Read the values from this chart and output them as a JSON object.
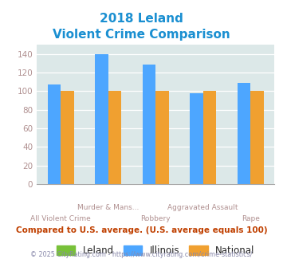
{
  "title_line1": "2018 Leland",
  "title_line2": "Violent Crime Comparison",
  "top_labels": [
    "",
    "Murder & Mans...",
    "",
    "Aggravated Assault",
    ""
  ],
  "bottom_labels": [
    "All Violent Crime",
    "",
    "Robbery",
    "",
    "Rape"
  ],
  "leland": [
    0,
    0,
    0,
    0,
    0
  ],
  "illinois": [
    107,
    140,
    129,
    98,
    109
  ],
  "national": [
    100,
    100,
    100,
    100,
    100
  ],
  "leland_color": "#78c139",
  "illinois_color": "#4da6ff",
  "national_color": "#f0a030",
  "ylim": [
    0,
    150
  ],
  "yticks": [
    0,
    20,
    40,
    60,
    80,
    100,
    120,
    140
  ],
  "plot_bg": "#dce8e8",
  "title_color": "#1a8fd1",
  "tick_label_color": "#b09090",
  "subtitle_color": "#c04000",
  "footer_color": "#8888aa",
  "footer_link_color": "#4488cc",
  "legend_label_color": "#222222",
  "legend_labels": [
    "Leland",
    "Illinois",
    "National"
  ],
  "subtitle_text": "Compared to U.S. average. (U.S. average equals 100)",
  "footer_text": "© 2025 CityRating.com - https://www.cityrating.com/crime-statistics/"
}
